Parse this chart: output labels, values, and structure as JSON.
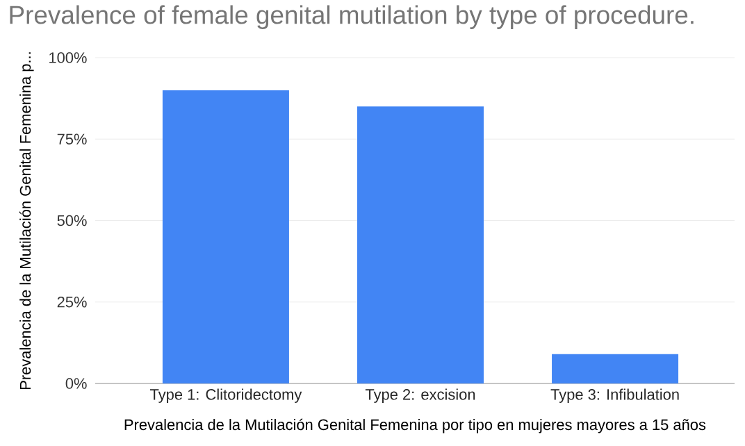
{
  "chart_data": {
    "type": "bar",
    "title": "Prevalence of female genital mutilation by type of procedure.",
    "xlabel": "Prevalencia de la Mutilación Genital Femenina por tipo en mujeres mayores a 15 años",
    "ylabel": "Prevalencia de la Mutilación Genital Femenina p...",
    "categories": [
      "Type 1: Clitoridectomy",
      "Type 2: excision",
      "Type 3: Infibulation"
    ],
    "values": [
      90,
      85,
      9
    ],
    "color": "#4285f4",
    "ylim": [
      0,
      100
    ],
    "yticks": [
      {
        "value": 0,
        "label": "0%"
      },
      {
        "value": 25,
        "label": "25%"
      },
      {
        "value": 50,
        "label": "50%"
      },
      {
        "value": 75,
        "label": "75%"
      },
      {
        "value": 100,
        "label": "100%"
      }
    ],
    "grid": "y"
  }
}
